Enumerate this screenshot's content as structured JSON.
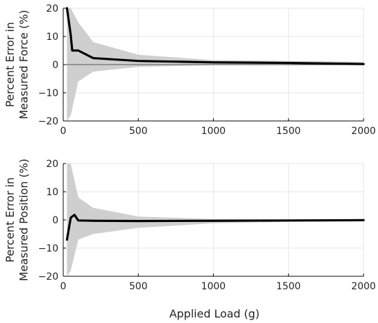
{
  "colors": {
    "line": "#000000",
    "band": "#cfcfcf",
    "grid": "#e6e6e6",
    "axis": "#000000"
  },
  "chart_data": [
    {
      "type": "line",
      "ylabel_lines": [
        "Percent Error in",
        "Measured Force (%)"
      ],
      "xlim": [
        0,
        2000
      ],
      "ylim": [
        -20,
        20
      ],
      "x_ticks": [
        0,
        500,
        1000,
        1500,
        2000
      ],
      "y_ticks": [
        -20,
        -10,
        0,
        10,
        20
      ],
      "grid": true,
      "zero_line": true,
      "series": [
        {
          "x": [
            25,
            50,
            60,
            100,
            200,
            500,
            1000,
            1500,
            2000
          ],
          "values": [
            20,
            10.5,
            5,
            5,
            2.3,
            1.3,
            0.8,
            0.6,
            0.2
          ]
        }
      ],
      "band": {
        "x": [
          25,
          50,
          100,
          200,
          500,
          1000,
          1500,
          2000
        ],
        "upper": [
          22,
          22,
          15,
          8,
          3.5,
          1.6,
          1.3,
          1.0
        ],
        "lower": [
          -22,
          -18,
          -6,
          -2.5,
          -0.8,
          -0.2,
          -0.2,
          -0.2
        ]
      }
    },
    {
      "type": "line",
      "ylabel_lines": [
        "Percent Error in",
        "Measured Position (%)"
      ],
      "xlabel": "Applied Load (g)",
      "xlim": [
        0,
        2000
      ],
      "ylim": [
        -20,
        20
      ],
      "x_ticks": [
        0,
        500,
        1000,
        1500,
        2000
      ],
      "y_ticks": [
        -20,
        -10,
        0,
        10,
        20
      ],
      "grid": true,
      "zero_line": false,
      "series": [
        {
          "x": [
            25,
            50,
            75,
            100,
            200,
            500,
            1000,
            1500,
            2000
          ],
          "values": [
            -7,
            0.8,
            1.8,
            -0.2,
            -0.3,
            -0.4,
            -0.3,
            -0.2,
            -0.1
          ]
        }
      ],
      "band": {
        "x": [
          25,
          50,
          100,
          200,
          500,
          1000,
          1500,
          2000
        ],
        "upper": [
          22,
          22,
          8,
          4.3,
          1.2,
          0.3,
          0.1,
          0.1
        ],
        "lower": [
          -22,
          -18,
          -7,
          -5,
          -2.8,
          -1.2,
          -0.7,
          -0.4
        ]
      }
    }
  ]
}
